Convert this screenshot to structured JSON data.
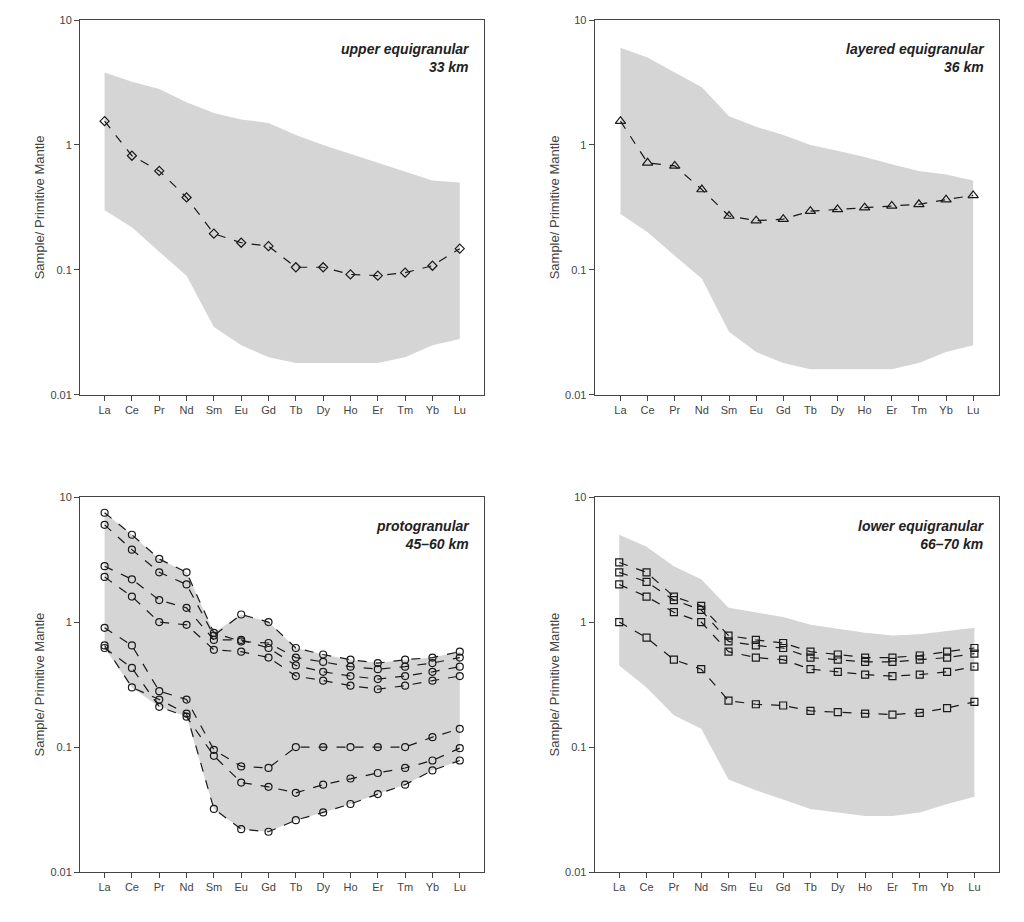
{
  "chart_data": [
    {
      "type": "line",
      "title": "upper equigranular\n33 km",
      "categories": [
        "La",
        "Ce",
        "Pr",
        "Nd",
        "Sm",
        "Eu",
        "Gd",
        "Tb",
        "Dy",
        "Ho",
        "Er",
        "Tm",
        "Yb",
        "Lu"
      ],
      "ylabel": "Sample/ Primitive Mantle",
      "log": "y",
      "ylim": [
        0.01,
        10
      ],
      "yticks": [
        0.01,
        0.1,
        1,
        10
      ],
      "grid": false,
      "series": [
        {
          "type": "band",
          "color": "#d5d5d5",
          "upper": [
            3.8,
            3.2,
            2.8,
            2.2,
            1.8,
            1.6,
            1.5,
            1.2,
            1.0,
            0.85,
            0.72,
            0.62,
            0.52,
            0.5
          ],
          "lower": [
            0.3,
            0.22,
            0.14,
            0.09,
            0.035,
            0.025,
            0.02,
            0.018,
            0.018,
            0.018,
            0.018,
            0.02,
            0.025,
            0.028
          ]
        },
        {
          "type": "line",
          "color": "#1a1a1a",
          "marker": "diamond",
          "line_style": "dashed",
          "values": [
            1.55,
            0.82,
            0.62,
            0.38,
            0.195,
            0.165,
            0.155,
            0.105,
            0.105,
            0.092,
            0.09,
            0.095,
            0.108,
            0.148
          ]
        }
      ]
    },
    {
      "type": "line",
      "title": "layered equigranular\n36 km",
      "categories": [
        "La",
        "Ce",
        "Pr",
        "Nd",
        "Sm",
        "Eu",
        "Gd",
        "Tb",
        "Dy",
        "Ho",
        "Er",
        "Tm",
        "Yb",
        "Lu"
      ],
      "ylabel": "Sample/ Primitive Mantle",
      "log": "y",
      "ylim": [
        0.01,
        10
      ],
      "yticks": [
        0.01,
        0.1,
        1,
        10
      ],
      "grid": false,
      "series": [
        {
          "type": "band",
          "color": "#d5d5d5",
          "upper": [
            6.0,
            5.0,
            3.8,
            2.9,
            1.7,
            1.4,
            1.2,
            1.0,
            0.9,
            0.8,
            0.7,
            0.62,
            0.58,
            0.52
          ],
          "lower": [
            0.28,
            0.2,
            0.13,
            0.085,
            0.032,
            0.022,
            0.018,
            0.016,
            0.016,
            0.016,
            0.016,
            0.018,
            0.022,
            0.025
          ]
        },
        {
          "type": "line",
          "color": "#1a1a1a",
          "marker": "triangle-up",
          "line_style": "dashed",
          "values": [
            1.55,
            0.72,
            0.68,
            0.44,
            0.27,
            0.248,
            0.255,
            0.295,
            0.305,
            0.315,
            0.325,
            0.335,
            0.365,
            0.395
          ]
        }
      ]
    },
    {
      "type": "line",
      "title": "protogranular\n45–60 km",
      "categories": [
        "La",
        "Ce",
        "Pr",
        "Nd",
        "Sm",
        "Eu",
        "Gd",
        "Tb",
        "Dy",
        "Ho",
        "Er",
        "Tm",
        "Yb",
        "Lu"
      ],
      "ylabel": "Sample/ Primitive Mantle",
      "log": "y",
      "ylim": [
        0.01,
        10
      ],
      "yticks": [
        0.01,
        0.1,
        1,
        10
      ],
      "grid": false,
      "series": [
        {
          "type": "band",
          "color": "#d5d5d5",
          "upper": [
            7.5,
            5.0,
            3.2,
            2.5,
            0.82,
            1.15,
            1.0,
            0.62,
            0.55,
            0.5,
            0.47,
            0.5,
            0.52,
            0.58
          ],
          "lower": [
            0.62,
            0.3,
            0.21,
            0.175,
            0.032,
            0.022,
            0.021,
            0.026,
            0.03,
            0.035,
            0.042,
            0.05,
            0.065,
            0.078
          ]
        },
        {
          "type": "line",
          "color": "#1a1a1a",
          "marker": "circle",
          "line_style": "dashed",
          "values": [
            7.5,
            5.0,
            3.2,
            2.5,
            0.82,
            0.7,
            0.68,
            0.52,
            0.48,
            0.44,
            0.42,
            0.44,
            0.47,
            0.52
          ]
        },
        {
          "type": "line",
          "color": "#1a1a1a",
          "marker": "circle",
          "line_style": "dashed",
          "values": [
            6.0,
            3.8,
            2.5,
            2.0,
            0.78,
            1.15,
            1.0,
            0.62,
            0.55,
            0.5,
            0.47,
            0.5,
            0.52,
            0.58
          ]
        },
        {
          "type": "line",
          "color": "#1a1a1a",
          "marker": "circle",
          "line_style": "dashed",
          "values": [
            2.8,
            2.2,
            1.5,
            1.3,
            0.72,
            0.72,
            0.62,
            0.45,
            0.4,
            0.37,
            0.35,
            0.37,
            0.4,
            0.44
          ]
        },
        {
          "type": "line",
          "color": "#1a1a1a",
          "marker": "circle",
          "line_style": "dashed",
          "values": [
            2.3,
            1.6,
            1.0,
            0.95,
            0.6,
            0.58,
            0.52,
            0.37,
            0.34,
            0.31,
            0.29,
            0.31,
            0.34,
            0.37
          ]
        },
        {
          "type": "line",
          "color": "#1a1a1a",
          "marker": "circle",
          "line_style": "dashed",
          "values": [
            0.9,
            0.65,
            0.28,
            0.24,
            0.095,
            0.07,
            0.068,
            0.1,
            0.1,
            0.1,
            0.1,
            0.1,
            0.12,
            0.14
          ]
        },
        {
          "type": "line",
          "color": "#1a1a1a",
          "marker": "circle",
          "line_style": "dashed",
          "values": [
            0.62,
            0.43,
            0.21,
            0.175,
            0.085,
            0.052,
            0.048,
            0.043,
            0.05,
            0.056,
            0.062,
            0.068,
            0.078,
            0.098
          ]
        },
        {
          "type": "line",
          "color": "#1a1a1a",
          "marker": "circle",
          "line_style": "dashed",
          "values": [
            0.65,
            0.3,
            0.24,
            0.185,
            0.032,
            0.022,
            0.021,
            0.026,
            0.03,
            0.035,
            0.042,
            0.05,
            0.065,
            0.078
          ]
        }
      ]
    },
    {
      "type": "line",
      "title": "lower equigranular\n66–70 km",
      "categories": [
        "La",
        "Ce",
        "Pr",
        "Nd",
        "Sm",
        "Eu",
        "Gd",
        "Tb",
        "Dy",
        "Ho",
        "Er",
        "Tm",
        "Yb",
        "Lu"
      ],
      "ylabel": "Sample/ Primitive Mantle",
      "log": "y",
      "ylim": [
        0.01,
        10
      ],
      "yticks": [
        0.01,
        0.1,
        1,
        10
      ],
      "grid": false,
      "series": [
        {
          "type": "band",
          "color": "#d5d5d5",
          "upper": [
            5.0,
            4.0,
            2.8,
            2.2,
            1.3,
            1.2,
            1.1,
            0.95,
            0.88,
            0.82,
            0.78,
            0.8,
            0.85,
            0.9
          ],
          "lower": [
            0.45,
            0.3,
            0.18,
            0.14,
            0.055,
            0.045,
            0.038,
            0.032,
            0.03,
            0.028,
            0.028,
            0.03,
            0.035,
            0.04
          ]
        },
        {
          "type": "line",
          "color": "#1a1a1a",
          "marker": "square",
          "line_style": "dashed",
          "values": [
            3.0,
            2.5,
            1.6,
            1.35,
            0.78,
            0.72,
            0.68,
            0.58,
            0.55,
            0.52,
            0.52,
            0.54,
            0.58,
            0.62
          ]
        },
        {
          "type": "line",
          "color": "#1a1a1a",
          "marker": "square",
          "line_style": "dashed",
          "values": [
            2.5,
            2.1,
            1.5,
            1.25,
            0.7,
            0.65,
            0.62,
            0.52,
            0.5,
            0.48,
            0.48,
            0.5,
            0.52,
            0.56
          ]
        },
        {
          "type": "line",
          "color": "#1a1a1a",
          "marker": "square",
          "line_style": "dashed",
          "values": [
            2.0,
            1.6,
            1.2,
            1.0,
            0.58,
            0.52,
            0.5,
            0.42,
            0.4,
            0.38,
            0.37,
            0.38,
            0.4,
            0.44
          ]
        },
        {
          "type": "line",
          "color": "#1a1a1a",
          "marker": "square",
          "line_style": "dashed",
          "values": [
            1.0,
            0.75,
            0.5,
            0.42,
            0.235,
            0.22,
            0.215,
            0.195,
            0.19,
            0.185,
            0.182,
            0.188,
            0.205,
            0.23
          ]
        }
      ]
    }
  ]
}
